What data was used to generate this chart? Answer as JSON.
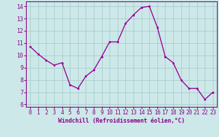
{
  "x": [
    0,
    1,
    2,
    3,
    4,
    5,
    6,
    7,
    8,
    9,
    10,
    11,
    12,
    13,
    14,
    15,
    16,
    17,
    18,
    19,
    20,
    21,
    22,
    23
  ],
  "y": [
    10.7,
    10.1,
    9.6,
    9.2,
    9.4,
    7.6,
    7.3,
    8.3,
    8.8,
    9.9,
    11.1,
    11.1,
    12.6,
    13.3,
    13.9,
    14.0,
    12.3,
    9.9,
    9.4,
    8.0,
    7.3,
    7.3,
    6.4,
    7.0
  ],
  "line_color": "#990099",
  "marker": "s",
  "marker_size": 2.0,
  "linewidth": 1.0,
  "xlabel": "Windchill (Refroidissement éolien,°C)",
  "ylim": [
    5.8,
    14.4
  ],
  "yticks": [
    6,
    7,
    8,
    9,
    10,
    11,
    12,
    13,
    14
  ],
  "xticks": [
    0,
    1,
    2,
    3,
    4,
    5,
    6,
    7,
    8,
    9,
    10,
    11,
    12,
    13,
    14,
    15,
    16,
    17,
    18,
    19,
    20,
    21,
    22,
    23
  ],
  "bg_color": "#cce8e8",
  "grid_color": "#aacccc",
  "label_color": "#880088",
  "tick_color": "#880088",
  "xlabel_fontsize": 6.0,
  "tick_fontsize": 5.8,
  "spine_color": "#880088",
  "xlim_left": -0.5,
  "xlim_right": 23.5
}
